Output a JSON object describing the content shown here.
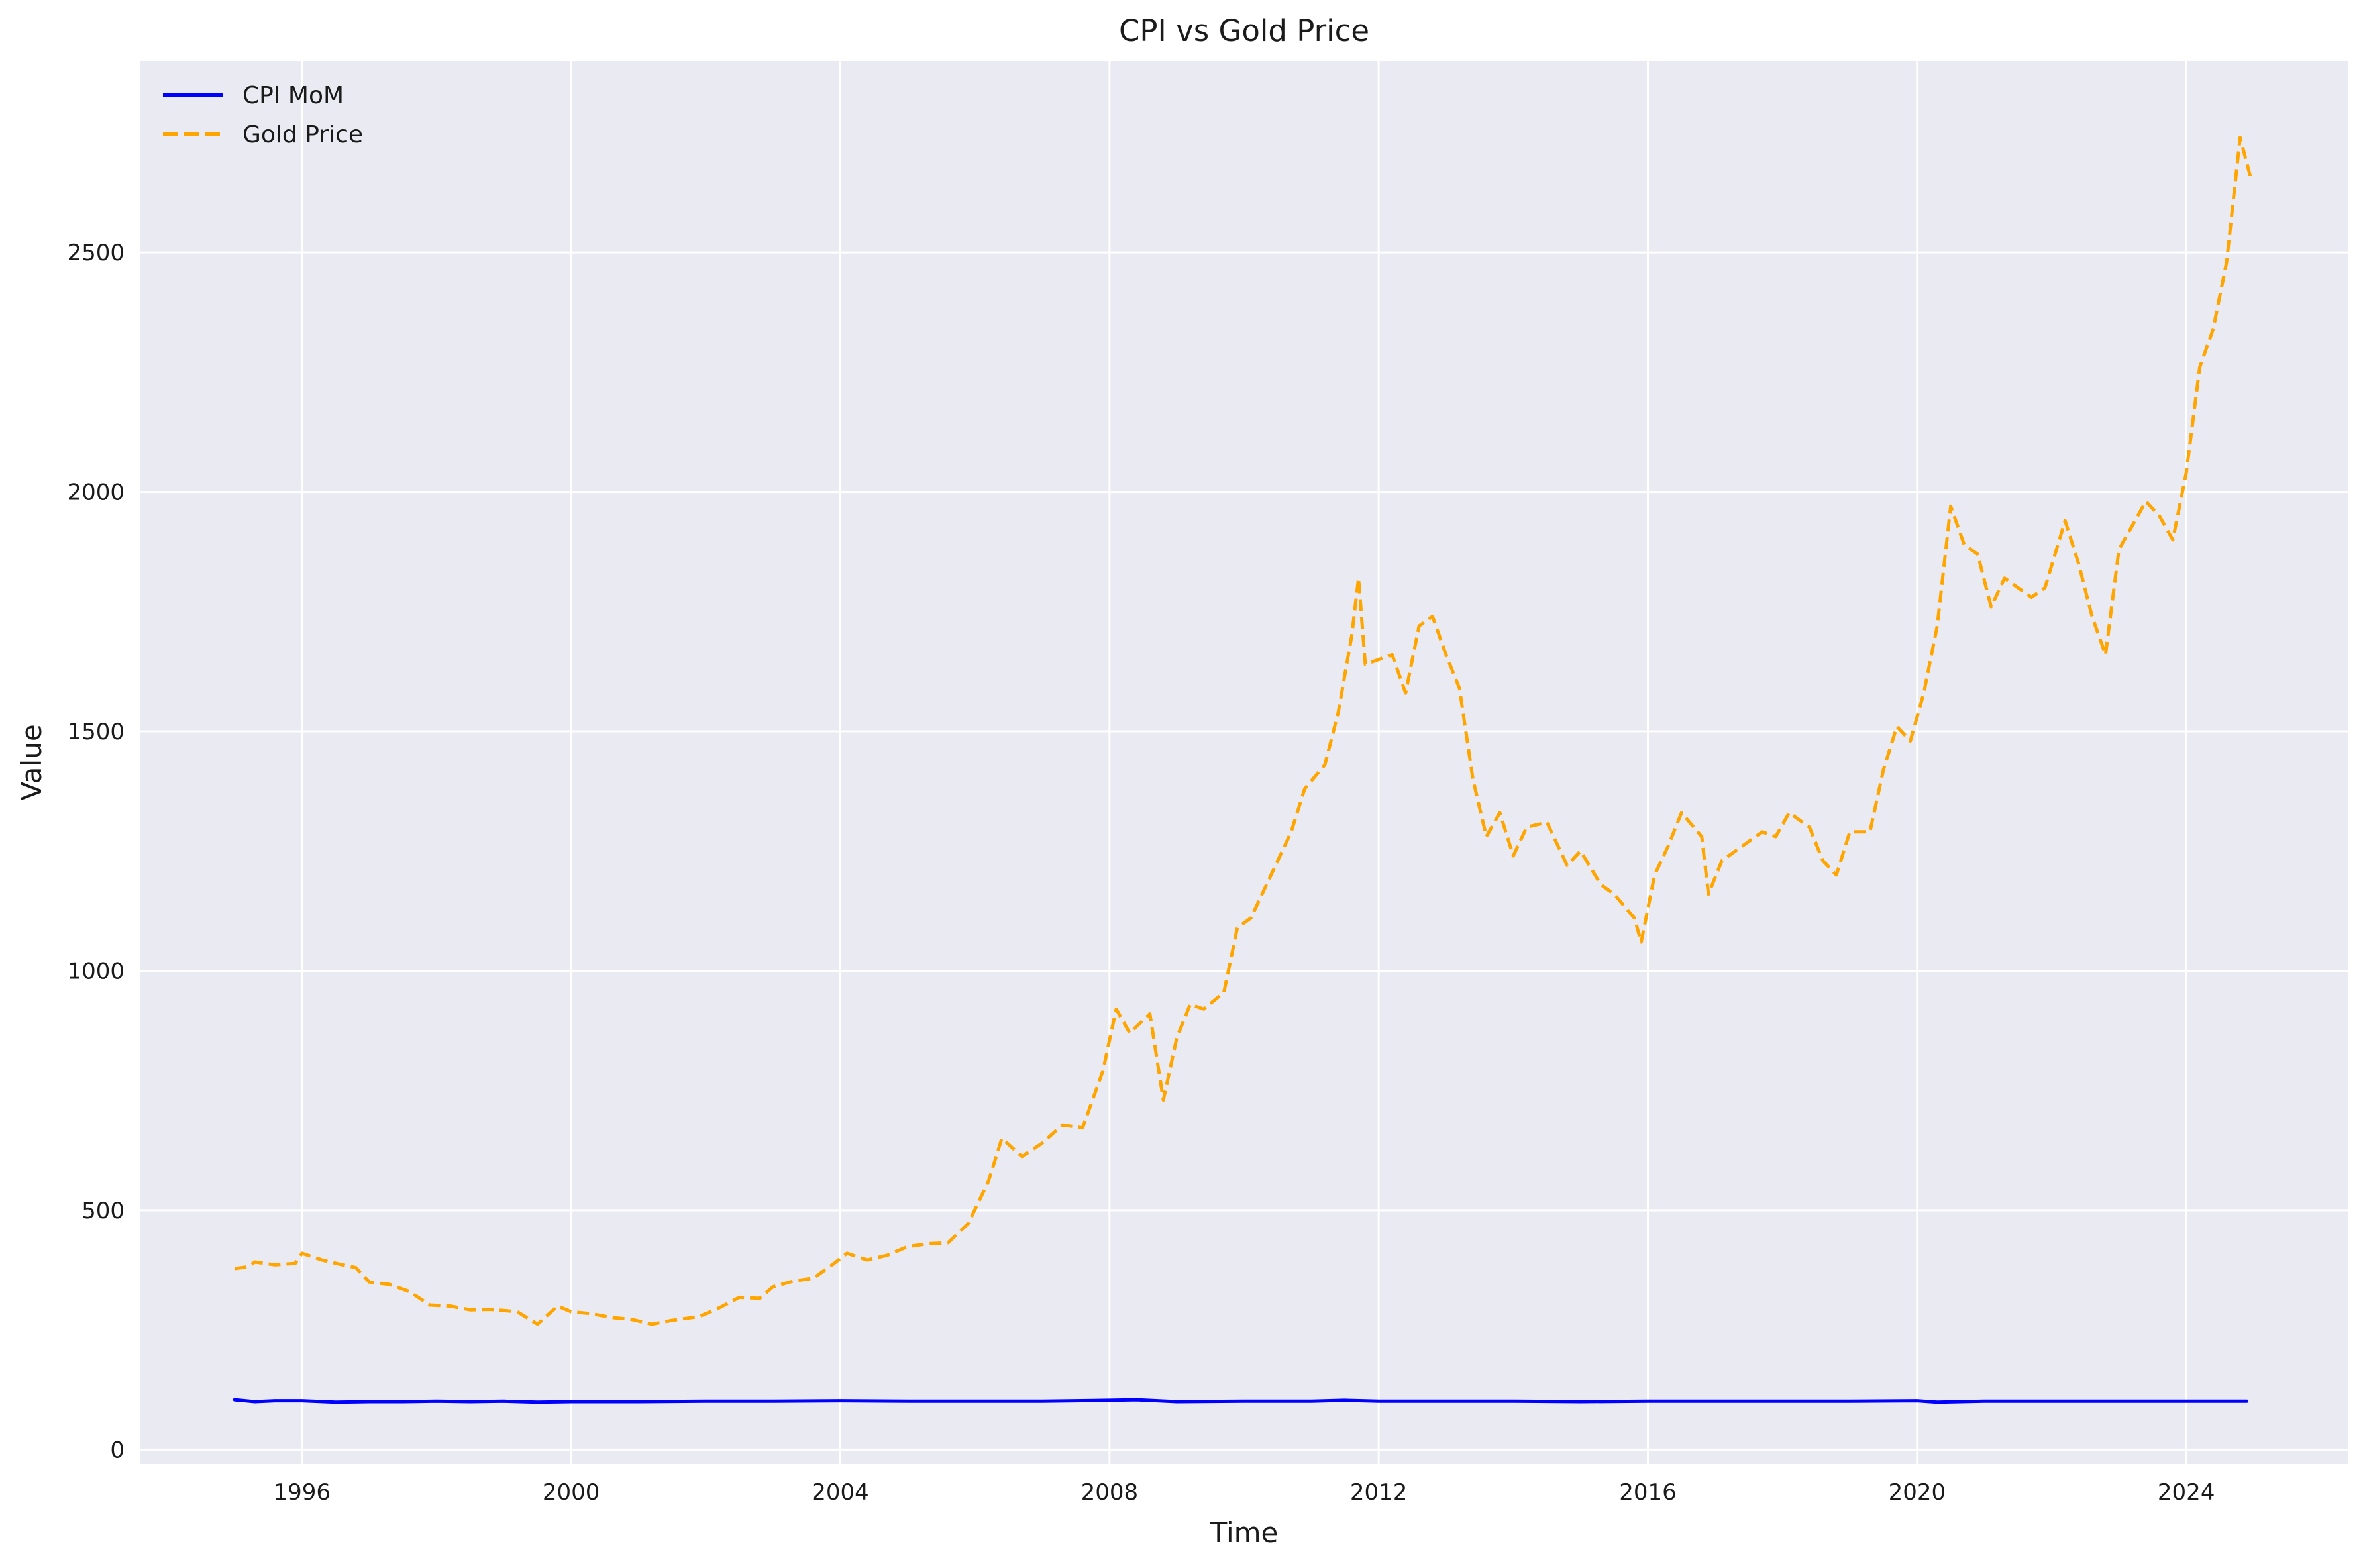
{
  "chart_data": {
    "type": "line",
    "title": "CPI vs Gold Price",
    "xlabel": "Time",
    "ylabel": "Value",
    "xlim": [
      1993.6,
      2026.4
    ],
    "ylim": [
      -30,
      2900
    ],
    "x_ticks": [
      1996,
      2000,
      2004,
      2008,
      2012,
      2016,
      2020,
      2024
    ],
    "y_ticks": [
      0,
      500,
      1000,
      1500,
      2000,
      2500
    ],
    "grid": true,
    "legend_position": "top-left",
    "background": "#eaeaf2",
    "series": [
      {
        "name": "CPI MoM",
        "color": "#0000ff",
        "style": "solid",
        "points": [
          [
            1995.0,
            104
          ],
          [
            1995.3,
            100
          ],
          [
            1995.6,
            102
          ],
          [
            1996.0,
            102
          ],
          [
            1996.5,
            99
          ],
          [
            1997.0,
            100
          ],
          [
            1997.5,
            100
          ],
          [
            1998.0,
            101
          ],
          [
            1998.5,
            100
          ],
          [
            1999.0,
            101
          ],
          [
            1999.5,
            99
          ],
          [
            2000.0,
            100
          ],
          [
            2001.0,
            100
          ],
          [
            2002.0,
            101
          ],
          [
            2003.0,
            101
          ],
          [
            2004.0,
            102
          ],
          [
            2005.0,
            101
          ],
          [
            2006.0,
            101
          ],
          [
            2007.0,
            101
          ],
          [
            2008.0,
            103
          ],
          [
            2008.4,
            104
          ],
          [
            2009.0,
            100
          ],
          [
            2010.0,
            101
          ],
          [
            2011.0,
            101
          ],
          [
            2011.5,
            103
          ],
          [
            2012.0,
            101
          ],
          [
            2013.0,
            101
          ],
          [
            2014.0,
            101
          ],
          [
            2015.0,
            100
          ],
          [
            2016.0,
            101
          ],
          [
            2017.0,
            101
          ],
          [
            2018.0,
            101
          ],
          [
            2019.0,
            101
          ],
          [
            2020.0,
            102
          ],
          [
            2020.3,
            99
          ],
          [
            2021.0,
            101
          ],
          [
            2022.0,
            101
          ],
          [
            2023.0,
            101
          ],
          [
            2024.0,
            101
          ],
          [
            2024.9,
            101
          ]
        ]
      },
      {
        "name": "Gold Price",
        "color": "#ffa500",
        "style": "dashed",
        "points": [
          [
            1995.0,
            378
          ],
          [
            1995.2,
            382
          ],
          [
            1995.3,
            392
          ],
          [
            1995.6,
            386
          ],
          [
            1995.9,
            389
          ],
          [
            1996.0,
            410
          ],
          [
            1996.3,
            396
          ],
          [
            1996.6,
            386
          ],
          [
            1996.8,
            380
          ],
          [
            1997.0,
            350
          ],
          [
            1997.3,
            345
          ],
          [
            1997.6,
            330
          ],
          [
            1997.9,
            302
          ],
          [
            1998.2,
            300
          ],
          [
            1998.5,
            292
          ],
          [
            1998.8,
            293
          ],
          [
            1999.2,
            288
          ],
          [
            1999.5,
            262
          ],
          [
            1999.8,
            300
          ],
          [
            2000.0,
            288
          ],
          [
            2000.3,
            284
          ],
          [
            2000.6,
            276
          ],
          [
            2000.9,
            272
          ],
          [
            2001.2,
            262
          ],
          [
            2001.5,
            270
          ],
          [
            2001.9,
            278
          ],
          [
            2002.2,
            296
          ],
          [
            2002.5,
            318
          ],
          [
            2002.8,
            316
          ],
          [
            2003.0,
            340
          ],
          [
            2003.3,
            352
          ],
          [
            2003.6,
            358
          ],
          [
            2003.9,
            388
          ],
          [
            2004.1,
            410
          ],
          [
            2004.4,
            396
          ],
          [
            2004.7,
            406
          ],
          [
            2005.0,
            424
          ],
          [
            2005.3,
            430
          ],
          [
            2005.6,
            432
          ],
          [
            2005.9,
            472
          ],
          [
            2006.2,
            560
          ],
          [
            2006.4,
            650
          ],
          [
            2006.7,
            612
          ],
          [
            2007.0,
            640
          ],
          [
            2007.3,
            678
          ],
          [
            2007.6,
            672
          ],
          [
            2007.9,
            790
          ],
          [
            2008.1,
            920
          ],
          [
            2008.3,
            870
          ],
          [
            2008.6,
            910
          ],
          [
            2008.8,
            730
          ],
          [
            2009.0,
            860
          ],
          [
            2009.2,
            930
          ],
          [
            2009.4,
            920
          ],
          [
            2009.7,
            955
          ],
          [
            2009.9,
            1090
          ],
          [
            2010.1,
            1110
          ],
          [
            2010.4,
            1200
          ],
          [
            2010.7,
            1290
          ],
          [
            2010.9,
            1380
          ],
          [
            2011.2,
            1430
          ],
          [
            2011.4,
            1540
          ],
          [
            2011.6,
            1700
          ],
          [
            2011.7,
            1820
          ],
          [
            2011.8,
            1640
          ],
          [
            2012.0,
            1650
          ],
          [
            2012.2,
            1660
          ],
          [
            2012.4,
            1580
          ],
          [
            2012.6,
            1720
          ],
          [
            2012.8,
            1740
          ],
          [
            2013.0,
            1660
          ],
          [
            2013.2,
            1590
          ],
          [
            2013.4,
            1400
          ],
          [
            2013.6,
            1280
          ],
          [
            2013.8,
            1330
          ],
          [
            2014.0,
            1240
          ],
          [
            2014.2,
            1300
          ],
          [
            2014.5,
            1310
          ],
          [
            2014.8,
            1220
          ],
          [
            2015.0,
            1250
          ],
          [
            2015.3,
            1180
          ],
          [
            2015.5,
            1160
          ],
          [
            2015.8,
            1110
          ],
          [
            2015.9,
            1060
          ],
          [
            2016.1,
            1200
          ],
          [
            2016.3,
            1260
          ],
          [
            2016.5,
            1330
          ],
          [
            2016.8,
            1280
          ],
          [
            2016.9,
            1160
          ],
          [
            2017.1,
            1230
          ],
          [
            2017.4,
            1260
          ],
          [
            2017.7,
            1290
          ],
          [
            2017.9,
            1280
          ],
          [
            2018.1,
            1330
          ],
          [
            2018.4,
            1300
          ],
          [
            2018.6,
            1230
          ],
          [
            2018.8,
            1200
          ],
          [
            2019.0,
            1290
          ],
          [
            2019.3,
            1290
          ],
          [
            2019.5,
            1420
          ],
          [
            2019.7,
            1510
          ],
          [
            2019.9,
            1480
          ],
          [
            2020.1,
            1580
          ],
          [
            2020.3,
            1720
          ],
          [
            2020.5,
            1970
          ],
          [
            2020.7,
            1890
          ],
          [
            2020.9,
            1870
          ],
          [
            2021.1,
            1760
          ],
          [
            2021.3,
            1820
          ],
          [
            2021.5,
            1800
          ],
          [
            2021.7,
            1780
          ],
          [
            2021.9,
            1800
          ],
          [
            2022.2,
            1940
          ],
          [
            2022.4,
            1850
          ],
          [
            2022.6,
            1740
          ],
          [
            2022.8,
            1660
          ],
          [
            2023.0,
            1880
          ],
          [
            2023.2,
            1930
          ],
          [
            2023.4,
            1980
          ],
          [
            2023.6,
            1950
          ],
          [
            2023.8,
            1900
          ],
          [
            2024.0,
            2040
          ],
          [
            2024.2,
            2260
          ],
          [
            2024.4,
            2340
          ],
          [
            2024.6,
            2480
          ],
          [
            2024.8,
            2740
          ],
          [
            2024.95,
            2660
          ]
        ]
      }
    ]
  }
}
